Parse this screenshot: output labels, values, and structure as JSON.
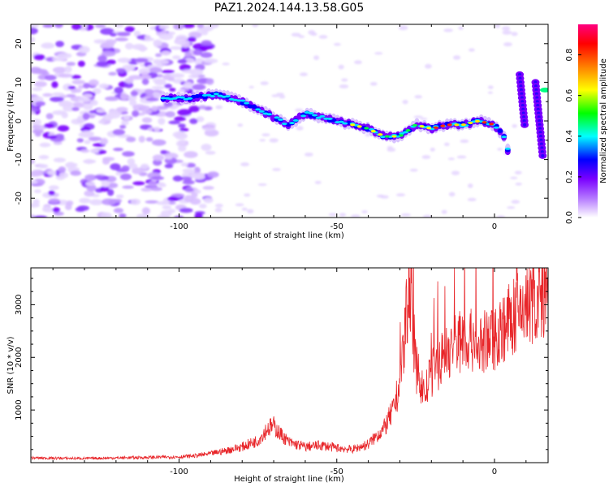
{
  "title": "PAZ1.2024.144.13.58.G05",
  "chart_data": [
    {
      "type": "heatmap",
      "xlabel": "Height of straight line (km)",
      "ylabel": "Frequency (Hz)",
      "xlim": [
        -147,
        17
      ],
      "ylim": [
        -25,
        25
      ],
      "xticks": [
        -100,
        -50,
        0
      ],
      "yticks": [
        -20,
        -10,
        0,
        10,
        20
      ],
      "colorbar": {
        "label": "Normalized spectral amplitude",
        "range": [
          0,
          0.95
        ],
        "ticks": [
          0.0,
          0.2,
          0.4,
          0.6,
          0.8
        ],
        "tick_labels": [
          "0.0",
          "0.2",
          "0.4",
          "0.6",
          "0.8"
        ],
        "colormap": "hsv-rainbow",
        "colors": [
          "#ffffff",
          "#7a00ff",
          "#0000ff",
          "#00ffff",
          "#00ff00",
          "#ffff00",
          "#ff8000",
          "#ff0000",
          "#ff0080"
        ]
      },
      "ridge": {
        "description_points_x_km": [
          -105,
          -95,
          -88,
          -80,
          -75,
          -70,
          -65,
          -60,
          -55,
          -50,
          -45,
          -40,
          -35,
          -30,
          -25,
          -20,
          -15,
          -10,
          -5,
          0,
          3,
          5
        ],
        "frequency_hz": [
          6,
          6,
          7,
          5,
          3,
          1,
          -1,
          2,
          1,
          0,
          -1,
          -2,
          -4,
          -4,
          -1,
          -2,
          -1,
          -1,
          0,
          -1,
          -4,
          -10
        ]
      },
      "grid": false
    },
    {
      "type": "line",
      "xlabel": "Height of straight line (km)",
      "ylabel": "SNR (10 * v/v)",
      "xlim": [
        -147,
        17
      ],
      "ylim": [
        0,
        3700
      ],
      "xticks": [
        -100,
        -50,
        0
      ],
      "yticks": [
        1000,
        2000,
        3000
      ],
      "color": "#e8262a",
      "series": [
        {
          "x": [
            -147,
            -140,
            -130,
            -120,
            -110,
            -100,
            -95,
            -90,
            -85,
            -80,
            -75,
            -72,
            -70,
            -68,
            -65,
            -60,
            -55,
            -50,
            -45,
            -40,
            -35,
            -32,
            -30,
            -28,
            -27,
            -25,
            -22,
            -20,
            -15,
            -10,
            -5,
            0,
            5,
            10,
            15,
            17
          ],
          "values": [
            90,
            85,
            80,
            90,
            100,
            110,
            130,
            170,
            230,
            300,
            420,
            650,
            700,
            550,
            380,
            300,
            330,
            280,
            250,
            350,
            650,
            1000,
            1500,
            2700,
            3700,
            1800,
            1300,
            1700,
            2100,
            2400,
            2200,
            2400,
            2700,
            3000,
            3100,
            3300
          ]
        }
      ],
      "grid": false
    }
  ]
}
